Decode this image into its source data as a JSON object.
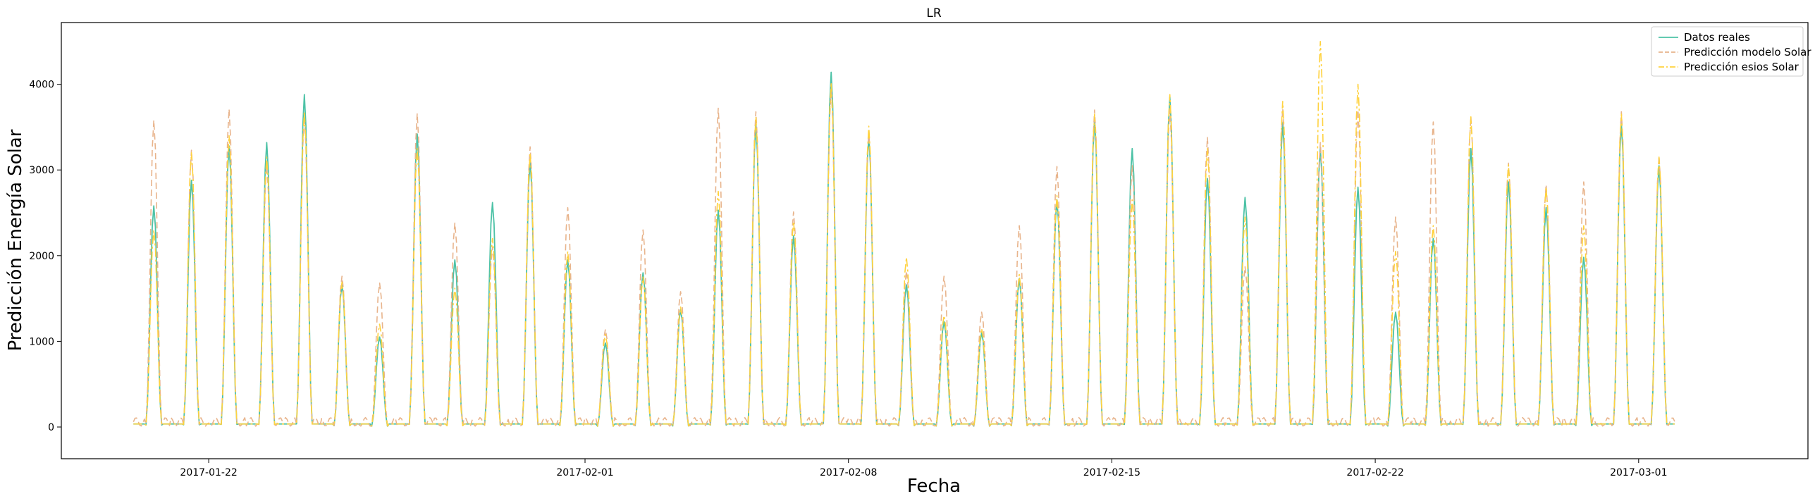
{
  "chart_data": {
    "type": "line",
    "title": "LR",
    "xlabel": "Fecha",
    "ylabel": "Predicción Energía Solar",
    "x_ticks": [
      "2017-01-22",
      "2017-02-01",
      "2017-02-08",
      "2017-02-15",
      "2017-02-22",
      "2017-03-01"
    ],
    "y_ticks": [
      0,
      1000,
      2000,
      3000,
      4000
    ],
    "ylim": [
      -370,
      4720
    ],
    "xlim": [
      "2017-01-18T02:00",
      "2017-03-05T12:00"
    ],
    "x_start": "2017-01-20",
    "x_end": "2017-03-02",
    "grid": false,
    "legend_position": "top-right",
    "series": [
      {
        "name": "Datos reales",
        "color": "#4dc2a6",
        "style": "solid",
        "daily_peaks": [
          2580,
          2880,
          3280,
          3320,
          3880,
          1660,
          1050,
          3420,
          1950,
          2620,
          3100,
          1950,
          980,
          1800,
          1370,
          2530,
          3530,
          2230,
          4140,
          3400,
          1660,
          1230,
          1100,
          1730,
          2650,
          3580,
          3250,
          3850,
          2900,
          2680,
          3550,
          3250,
          2800,
          1340,
          2200,
          3250,
          2860,
          2560,
          1980,
          3540,
          3050
        ]
      },
      {
        "name": "Predicción modelo Solar",
        "color": "#e8b48c",
        "style": "dashed",
        "daily_peaks": [
          3580,
          3230,
          3710,
          3050,
          3620,
          1760,
          1680,
          3660,
          2380,
          2100,
          3270,
          2560,
          1140,
          2300,
          1580,
          3720,
          3680,
          2510,
          3950,
          3460,
          1820,
          1760,
          1340,
          2350,
          3040,
          3700,
          3050,
          3700,
          3380,
          1870,
          3720,
          3320,
          3700,
          2450,
          3560,
          3620,
          3080,
          2830,
          2860,
          3680,
          3160
        ]
      },
      {
        "name": "Predicción esios Solar",
        "color": "#ffd23f",
        "style": "dashdot",
        "daily_peaks": [
          2300,
          3200,
          3400,
          3150,
          3680,
          1690,
          1200,
          3250,
          1620,
          2200,
          3200,
          2050,
          1080,
          1750,
          1400,
          2750,
          3620,
          2400,
          4020,
          3510,
          1980,
          1300,
          1150,
          1780,
          2700,
          3650,
          2650,
          3880,
          3250,
          2450,
          3800,
          4500,
          4000,
          2050,
          2350,
          3620,
          3060,
          2800,
          2350,
          3650,
          3150
        ]
      }
    ]
  }
}
